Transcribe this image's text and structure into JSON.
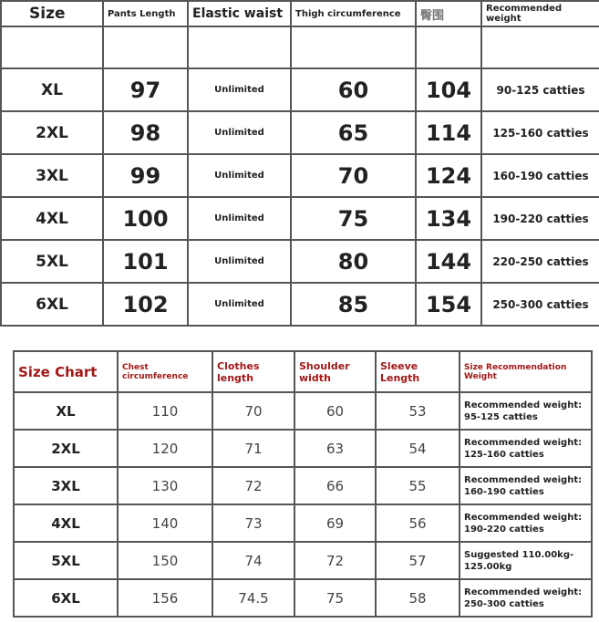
{
  "pants": {
    "headers": [
      "Size",
      "Pants Length",
      "Elastic waist",
      "Thigh circumference",
      "臀围",
      "Recommended weight"
    ],
    "rows": [
      [
        "XL",
        "97",
        "Unlimited",
        "60",
        "104",
        "90-125 catties"
      ],
      [
        "2XL",
        "98",
        "Unlimited",
        "65",
        "114",
        "125-160 catties"
      ],
      [
        "3XL",
        "99",
        "Unlimited",
        "70",
        "124",
        "160-190 catties"
      ],
      [
        "4XL",
        "100",
        "Unlimited",
        "75",
        "134",
        "190-220 catties"
      ],
      [
        "5XL",
        "101",
        "Unlimited",
        "80",
        "144",
        "220-250 catties"
      ],
      [
        "6XL",
        "102",
        "Unlimited",
        "85",
        "154",
        "250-300 catties"
      ]
    ]
  },
  "tops": {
    "headers": [
      "Size Chart",
      "Chest circumference",
      "Clothes length",
      "Shoulder width",
      "Sleeve Length",
      "Size Recommendation Weight"
    ],
    "rows": [
      [
        "XL",
        "110",
        "70",
        "60",
        "53",
        "Recommended weight: 95-125 catties"
      ],
      [
        "2XL",
        "120",
        "71",
        "63",
        "54",
        "Recommended weight: 125-160 catties"
      ],
      [
        "3XL",
        "130",
        "72",
        "66",
        "55",
        "Recommended weight: 160-190 catties"
      ],
      [
        "4XL",
        "140",
        "73",
        "69",
        "56",
        "Recommended weight: 190-220 catties"
      ],
      [
        "5XL",
        "150",
        "74",
        "72",
        "57",
        "Suggested 110.00kg-125.00kg"
      ],
      [
        "6XL",
        "156",
        "74.5",
        "75",
        "58",
        "Recommended weight: 250-300 catties"
      ]
    ]
  },
  "colors": {
    "header_red": "#a01818"
  }
}
